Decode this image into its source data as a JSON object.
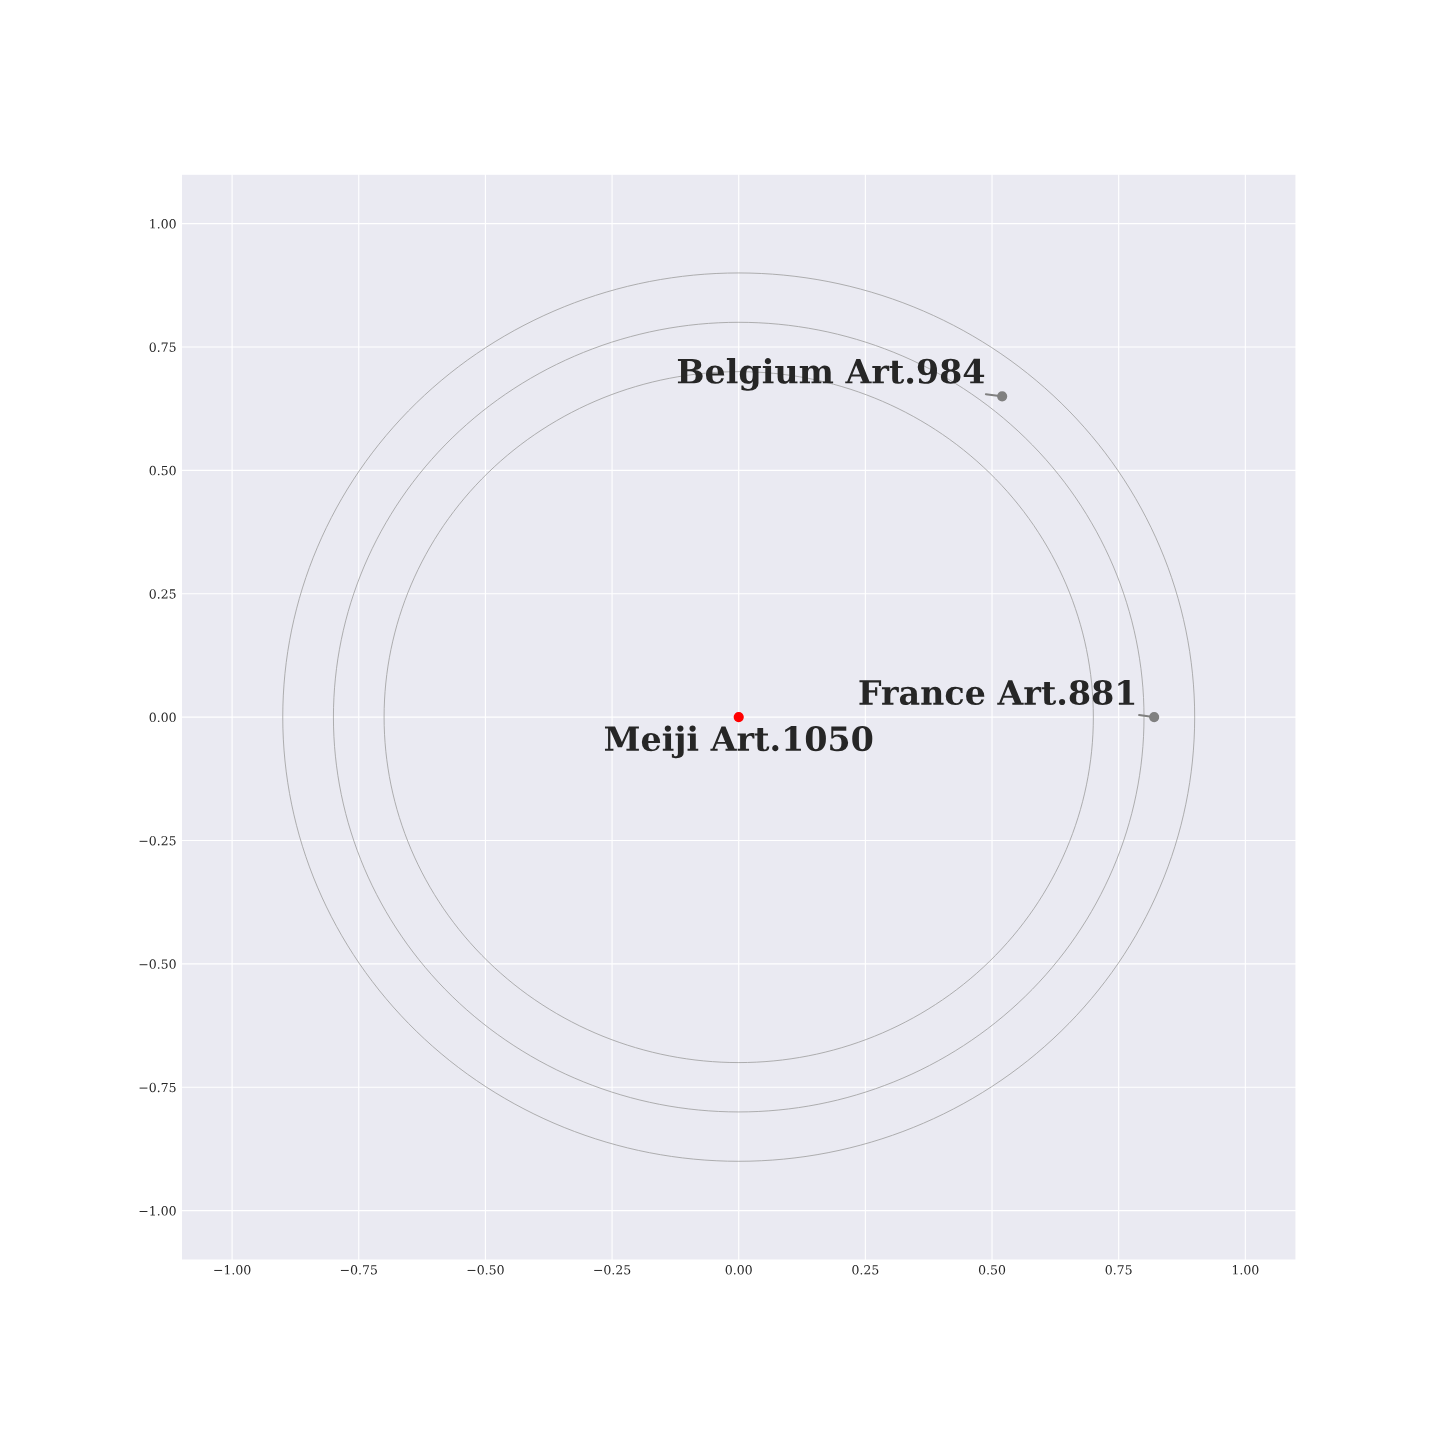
{
  "chart_data": {
    "type": "scatter",
    "grid": true,
    "legend": false,
    "xlim": [
      -1.1,
      1.1
    ],
    "ylim": [
      -1.1,
      1.1
    ],
    "xticks": [
      {
        "value": -1,
        "label": "−1.00"
      },
      {
        "value": -0.75,
        "label": "−0.75"
      },
      {
        "value": -0.5,
        "label": "−0.50"
      },
      {
        "value": -0.25,
        "label": "−0.25"
      },
      {
        "value": 0,
        "label": "0.00"
      },
      {
        "value": 0.25,
        "label": "0.25"
      },
      {
        "value": 0.5,
        "label": "0.50"
      },
      {
        "value": 0.75,
        "label": "0.75"
      },
      {
        "value": 1,
        "label": "1.00"
      }
    ],
    "yticks": [
      {
        "value": -1,
        "label": "−1.00"
      },
      {
        "value": -0.75,
        "label": "−0.75"
      },
      {
        "value": -0.5,
        "label": "−0.50"
      },
      {
        "value": -0.25,
        "label": "−0.25"
      },
      {
        "value": 0,
        "label": "0.00"
      },
      {
        "value": 0.25,
        "label": "0.25"
      },
      {
        "value": 0.5,
        "label": "0.50"
      },
      {
        "value": 0.75,
        "label": "0.75"
      },
      {
        "value": 1,
        "label": "1.00"
      }
    ],
    "series": [
      {
        "marker": "circle",
        "x": [
          0,
          0.52,
          0.82
        ],
        "values": [
          0,
          0.65,
          0
        ],
        "colors": [
          "#ff0000",
          "#808080",
          "#808080"
        ]
      }
    ],
    "annotations": [
      {
        "text": "Meiji Art.1050",
        "x": 0,
        "y": 0
      },
      {
        "text": "Belgium Art.984",
        "x": 0.52,
        "y": 0.65
      },
      {
        "text": "France Art.881",
        "x": 0.82,
        "y": 0
      }
    ]
  }
}
